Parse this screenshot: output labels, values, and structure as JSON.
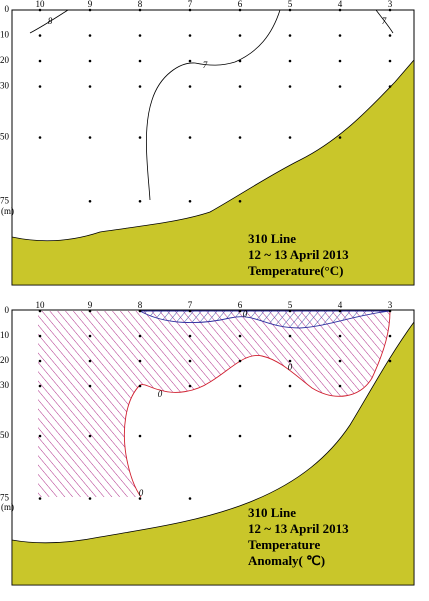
{
  "panels": [
    {
      "stations": [
        "10",
        "9",
        "8",
        "7",
        "6",
        "5",
        "4",
        "3"
      ],
      "depths": [
        0,
        10,
        20,
        30,
        50,
        75
      ],
      "depth_unit": "(m)",
      "contour_labels": [
        "8",
        "7",
        "7"
      ],
      "caption": [
        "310 Line",
        "12 ~ 13 April 2013",
        "Temperature(°C)"
      ]
    },
    {
      "stations": [
        "10",
        "9",
        "8",
        "7",
        "6",
        "5",
        "4",
        "3"
      ],
      "depths": [
        0,
        10,
        20,
        30,
        50,
        75
      ],
      "depth_unit": "(m)",
      "contour_labels": [
        "0",
        "0",
        "0",
        "0"
      ],
      "caption": [
        "310 Line",
        "12 ~ 13 April 2013",
        "Temperature",
        "Anomaly( ℃)"
      ]
    }
  ]
}
